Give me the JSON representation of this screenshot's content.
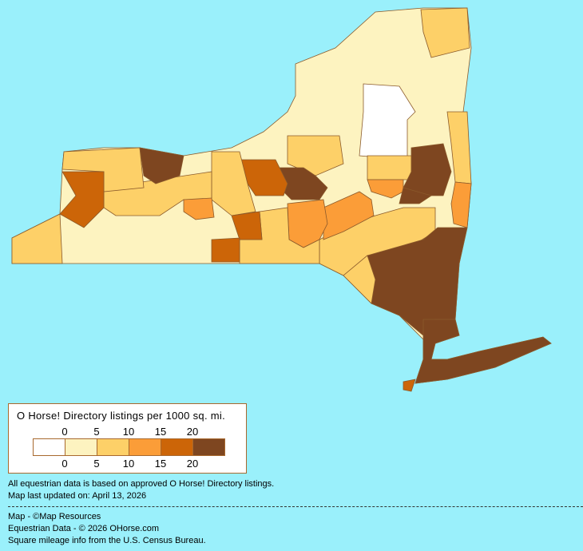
{
  "map": {
    "background": "#9af0fb",
    "border_color": "#8b5a2b"
  },
  "legend": {
    "title": "O Horse! Directory listings per 1000 sq. mi.",
    "top_ticks": [
      "0",
      "5",
      "10",
      "15",
      "20"
    ],
    "bottom_ticks": [
      "0",
      "5",
      "10",
      "15",
      "20"
    ],
    "colors": [
      "#ffffff",
      "#fdf3c0",
      "#fdd068",
      "#fb9d38",
      "#cc6508",
      "#7e4620"
    ]
  },
  "notes": {
    "data_basis": "All equestrian data is based on approved O Horse! Directory listings.",
    "updated": "Map last updated on: April 13, 2026"
  },
  "credits": {
    "map": "Map - ©Map Resources",
    "data": "Equestrian Data - © 2026 OHorse.com",
    "census": "Square mileage info from the U.S. Census Bureau."
  }
}
